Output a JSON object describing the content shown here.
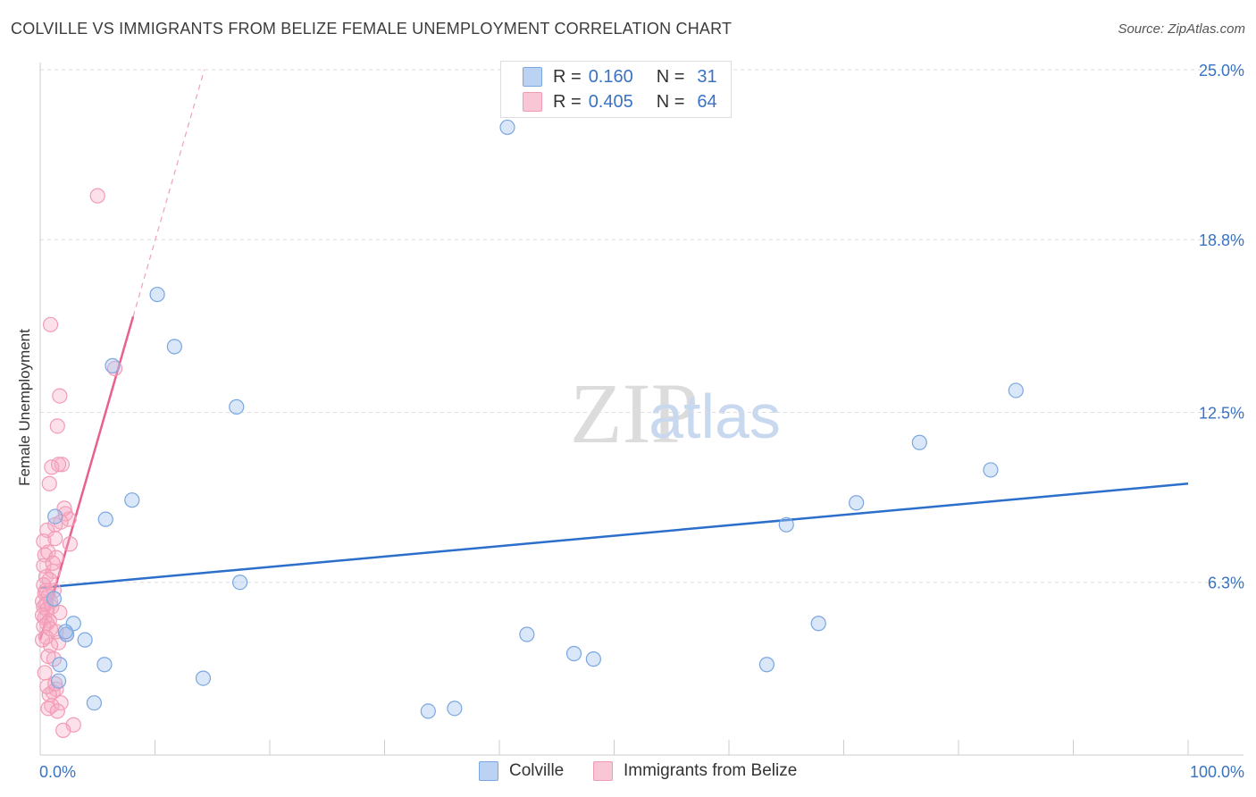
{
  "title": "COLVILLE VS IMMIGRANTS FROM BELIZE FEMALE UNEMPLOYMENT CORRELATION CHART",
  "source": "Source: ZipAtlas.com",
  "watermark": {
    "zip": "ZIP",
    "atlas": "atlas"
  },
  "legend": {
    "r_label": "R =",
    "n_label": "N =",
    "series1": {
      "r": "0.160",
      "n": "31"
    },
    "series2": {
      "r": "0.405",
      "n": "64"
    }
  },
  "chart_data": {
    "type": "scatter",
    "title": "COLVILLE VS IMMIGRANTS FROM BELIZE FEMALE UNEMPLOYMENT CORRELATION CHART",
    "xlabel": "",
    "ylabel": "Female Unemployment",
    "xlim": [
      0,
      100
    ],
    "ylim": [
      0,
      25
    ],
    "x_tick_labels": [
      "0.0%",
      "100.0%"
    ],
    "y_ticks": [
      6.3,
      12.5,
      18.8,
      25.0
    ],
    "y_tick_labels": [
      "6.3%",
      "12.5%",
      "18.8%",
      "25.0%"
    ],
    "grid": true,
    "colors": {
      "colville": "#7aa7e0",
      "belize": "#f29bb5",
      "colville_line": "#2b6fcb",
      "belize_line": "#e8608c"
    },
    "series": [
      {
        "name": "Colville",
        "points": [
          [
            40.7,
            22.9
          ],
          [
            10.2,
            16.8
          ],
          [
            11.7,
            14.9
          ],
          [
            6.3,
            14.2
          ],
          [
            17.1,
            12.7
          ],
          [
            85.0,
            13.3
          ],
          [
            76.6,
            11.4
          ],
          [
            82.8,
            10.4
          ],
          [
            8.0,
            9.3
          ],
          [
            71.1,
            9.2
          ],
          [
            1.3,
            8.7
          ],
          [
            5.7,
            8.6
          ],
          [
            65.0,
            8.4
          ],
          [
            17.4,
            6.3
          ],
          [
            2.9,
            4.8
          ],
          [
            67.8,
            4.8
          ],
          [
            3.9,
            4.2
          ],
          [
            2.3,
            4.4
          ],
          [
            42.4,
            4.4
          ],
          [
            46.5,
            3.7
          ],
          [
            48.2,
            3.5
          ],
          [
            1.2,
            5.7
          ],
          [
            1.7,
            3.3
          ],
          [
            5.6,
            3.3
          ],
          [
            63.3,
            3.3
          ],
          [
            14.2,
            2.8
          ],
          [
            1.6,
            2.7
          ],
          [
            4.7,
            1.9
          ],
          [
            33.8,
            1.6
          ],
          [
            36.1,
            1.7
          ],
          [
            2.2,
            4.5
          ]
        ]
      },
      {
        "name": "Immigrants from Belize",
        "points": [
          [
            5.0,
            20.4
          ],
          [
            0.9,
            15.7
          ],
          [
            6.5,
            14.1
          ],
          [
            1.7,
            13.1
          ],
          [
            1.5,
            12.0
          ],
          [
            1.9,
            10.6
          ],
          [
            1.0,
            10.5
          ],
          [
            1.6,
            10.6
          ],
          [
            0.8,
            9.9
          ],
          [
            2.2,
            8.8
          ],
          [
            2.5,
            8.6
          ],
          [
            1.3,
            8.4
          ],
          [
            1.8,
            8.5
          ],
          [
            0.6,
            8.2
          ],
          [
            1.3,
            7.9
          ],
          [
            2.6,
            7.7
          ],
          [
            0.4,
            7.3
          ],
          [
            0.7,
            7.4
          ],
          [
            1.4,
            7.2
          ],
          [
            0.3,
            6.9
          ],
          [
            1.1,
            6.7
          ],
          [
            0.5,
            6.5
          ],
          [
            0.8,
            6.4
          ],
          [
            0.3,
            6.2
          ],
          [
            1.2,
            6.0
          ],
          [
            0.4,
            5.9
          ],
          [
            0.7,
            5.8
          ],
          [
            0.2,
            5.6
          ],
          [
            0.9,
            5.6
          ],
          [
            0.5,
            5.5
          ],
          [
            0.3,
            5.4
          ],
          [
            1.0,
            5.4
          ],
          [
            0.6,
            5.3
          ],
          [
            0.2,
            5.1
          ],
          [
            0.4,
            5.0
          ],
          [
            0.8,
            4.9
          ],
          [
            0.6,
            4.8
          ],
          [
            0.3,
            4.7
          ],
          [
            0.9,
            4.6
          ],
          [
            1.4,
            4.5
          ],
          [
            2.3,
            4.4
          ],
          [
            1.6,
            4.1
          ],
          [
            0.9,
            4.0
          ],
          [
            0.5,
            4.3
          ],
          [
            1.2,
            3.5
          ],
          [
            0.7,
            3.6
          ],
          [
            1.4,
            2.4
          ],
          [
            1.1,
            2.3
          ],
          [
            0.8,
            2.2
          ],
          [
            1.8,
            1.9
          ],
          [
            1.0,
            1.8
          ],
          [
            0.7,
            1.7
          ],
          [
            1.5,
            1.6
          ],
          [
            2.9,
            1.1
          ],
          [
            2.0,
            0.9
          ],
          [
            0.6,
            2.5
          ],
          [
            0.4,
            3.0
          ],
          [
            1.3,
            2.6
          ],
          [
            0.2,
            4.2
          ],
          [
            1.7,
            5.2
          ],
          [
            0.5,
            6.0
          ],
          [
            1.1,
            7.0
          ],
          [
            0.3,
            7.8
          ],
          [
            2.1,
            9.0
          ]
        ]
      }
    ],
    "trend_lines": [
      {
        "series": "Colville",
        "x": [
          0,
          100
        ],
        "y": [
          6.1,
          9.9
        ]
      },
      {
        "series": "Immigrants from Belize",
        "x": [
          0,
          8.1
        ],
        "y": [
          4.2,
          16.0
        ],
        "extended_x": [
          8.1,
          14.3
        ],
        "extended_y": [
          16.0,
          25.0
        ]
      }
    ]
  },
  "bottom_legend": [
    "Colville",
    "Immigrants from Belize"
  ]
}
